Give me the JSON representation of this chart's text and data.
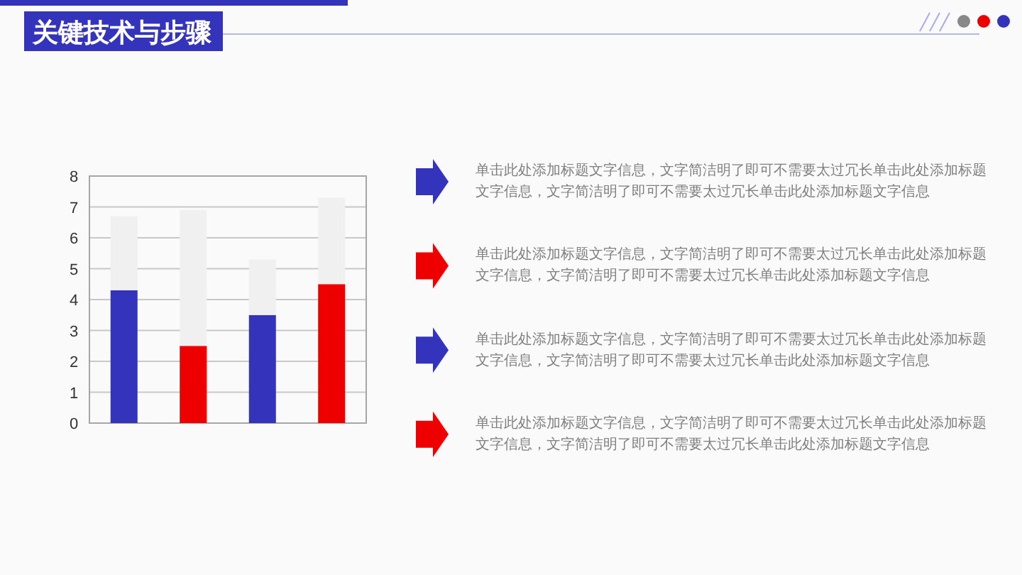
{
  "chart_data": {
    "type": "bar",
    "title": "关键技术与步骤",
    "categories": [
      null,
      null,
      null,
      null
    ],
    "series": [
      {
        "colors": [
          "#3333bb",
          "#ee0000",
          "#3333bb",
          "#ee0000"
        ],
        "values": [
          4.3,
          2.5,
          3.5,
          4.5
        ]
      },
      {
        "color": "#f0f0f0",
        "values": [
          2.4,
          4.4,
          1.8,
          2.8
        ]
      }
    ],
    "stacked": true,
    "ylim": [
      0,
      8
    ],
    "yticks": [
      0,
      1,
      2,
      3,
      4,
      5,
      6,
      7,
      8
    ],
    "grid": "y",
    "annotations": [
      "单击此处添加标题文字信息，文字简洁明了即可不需要太过冗长单击此处添加标题文字信息，文字简洁明了即可不需要太过冗长单击此处添加标题文字信息",
      "单击此处添加标题文字信息，文字简洁明了即可不需要太过冗长单击此处添加标题文字信息，文字简洁明了即可不需要太过冗长单击此处添加标题文字信息",
      "单击此处添加标题文字信息，文字简洁明了即可不需要太过冗长单击此处添加标题文字信息，文字简洁明了即可不需要太过冗长单击此处添加标题文字信息",
      "单击此处添加标题文字信息，文字简洁明了即可不需要太过冗长单击此处添加标题文字信息，文字简洁明了即可不需要太过冗长单击此处添加标题文字信息"
    ]
  }
}
